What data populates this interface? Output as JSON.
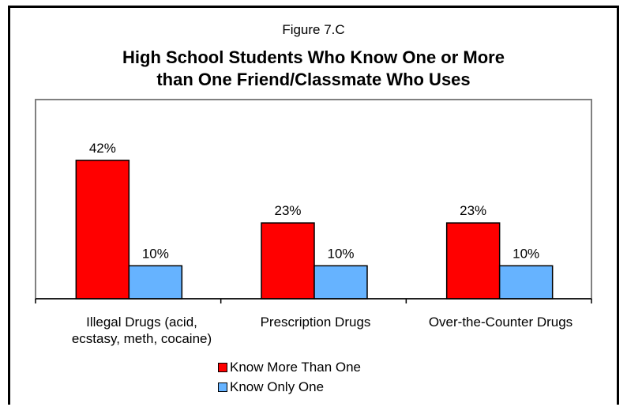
{
  "chart_data": {
    "type": "bar",
    "figure_label": "Figure 7.C",
    "title_lines": [
      "High School Students Who Know One or More",
      "than One Friend/Classmate Who Uses"
    ],
    "title": "High School Students Who Know One or More than One Friend/Classmate Who Uses",
    "categories": [
      "Illegal Drugs (acid, ecstasy, meth, cocaine)",
      "Prescription Drugs",
      "Over-the-Counter Drugs"
    ],
    "category_lines": [
      [
        "Illegal Drugs (acid,",
        "ecstasy, meth, cocaine)"
      ],
      [
        "Prescription Drugs"
      ],
      [
        "Over-the-Counter Drugs"
      ]
    ],
    "series": [
      {
        "name": "Know More Than One",
        "color": "#ff0000",
        "values": [
          42,
          23,
          23
        ],
        "labels": [
          "42%",
          "23%",
          "23%"
        ]
      },
      {
        "name": "Know Only One",
        "color": "#66b3ff",
        "values": [
          10,
          10,
          10
        ],
        "labels": [
          "10%",
          "10%",
          "10%"
        ]
      }
    ],
    "unit": "%",
    "ylim": [
      0,
      50
    ],
    "grid": false,
    "legend_position": "bottom"
  }
}
